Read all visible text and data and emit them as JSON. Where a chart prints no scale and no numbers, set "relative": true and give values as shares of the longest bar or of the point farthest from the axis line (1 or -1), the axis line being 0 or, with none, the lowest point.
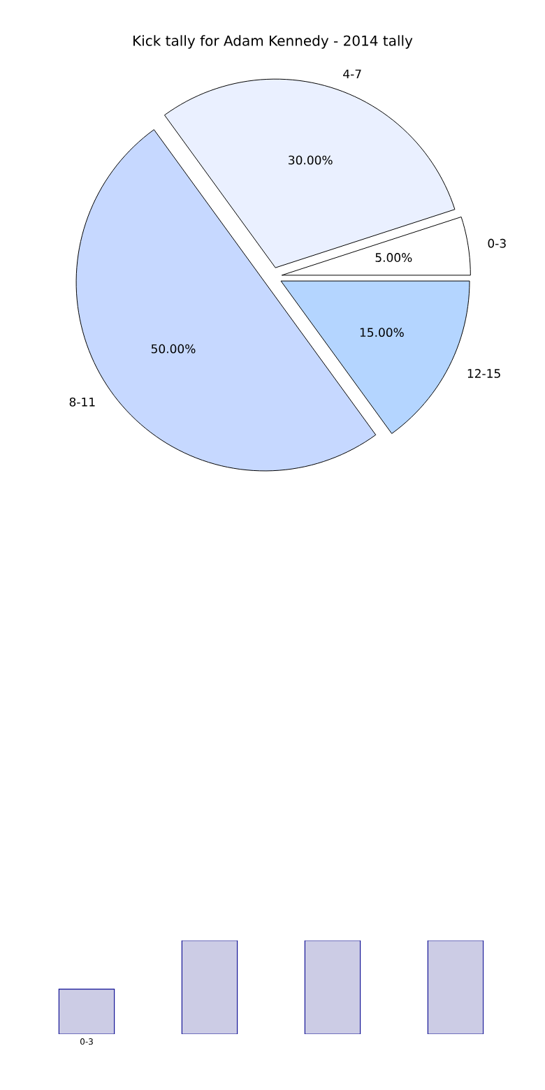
{
  "chart_data": [
    {
      "type": "pie",
      "title": "Kick tally for Adam Kennedy - 2014 tally",
      "categories": [
        "0-3",
        "4-7",
        "8-11",
        "12-15"
      ],
      "values": [
        5,
        30,
        50,
        15
      ],
      "colors": [
        "#ffffff",
        "#eaf0ff",
        "#c6d8ff",
        "#b4d5ff"
      ],
      "value_labels": [
        "5.00%",
        "30.00%",
        "50.00%",
        "15.00%"
      ]
    },
    {
      "type": "bar",
      "categories": [
        "0-3",
        null,
        null,
        null
      ],
      "values": [
        0.48,
        1,
        1,
        1
      ],
      "color": "#ccccE5",
      "relative": true
    }
  ]
}
